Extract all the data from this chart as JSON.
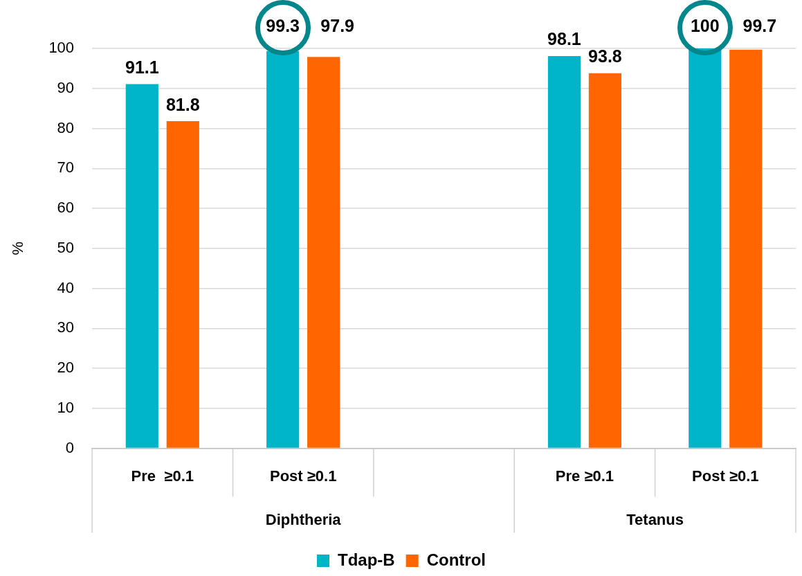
{
  "chart_data": {
    "type": "bar",
    "ylabel": "%",
    "categories": [
      "Pre  ≥0.1",
      "Post ≥0.1",
      null,
      "Pre ≥0.1",
      "Post ≥0.1"
    ],
    "series": [
      {
        "name": "Tdap-B",
        "color": "#00b4c8",
        "values": [
          91.1,
          99.3,
          null,
          98.1,
          100
        ]
      },
      {
        "name": "Control",
        "color": "#ff6600",
        "values": [
          81.8,
          97.9,
          null,
          93.8,
          99.7
        ]
      }
    ],
    "annotations": [
      "Diphtheria",
      "Tetanus"
    ],
    "ylim": [
      0,
      100
    ],
    "yticks": [
      0,
      10,
      20,
      30,
      40,
      50,
      60,
      70,
      80,
      90,
      100
    ],
    "grid": "y",
    "legend": "bottom",
    "data_labels": true
  }
}
